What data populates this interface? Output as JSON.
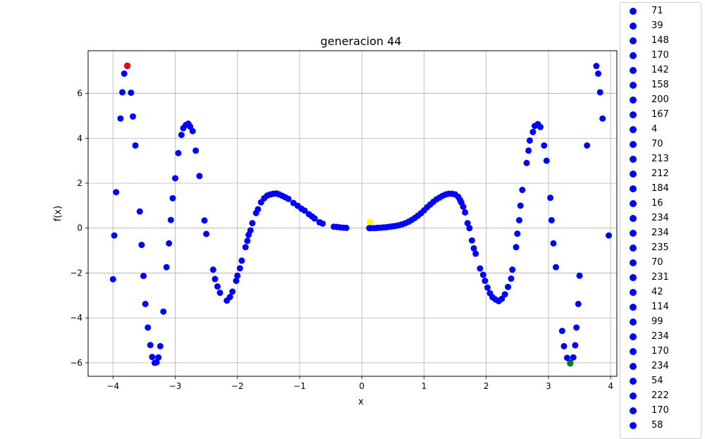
{
  "chart_data": {
    "type": "scatter",
    "title": "generacion 44",
    "xlabel": "x",
    "ylabel": "f(x)",
    "xlim": [
      -4.4,
      4.1
    ],
    "ylim": [
      -6.6,
      7.9
    ],
    "xticks": [
      -4,
      -3,
      -2,
      -1,
      0,
      1,
      2,
      3,
      4
    ],
    "yticks": [
      -6,
      -4,
      -2,
      0,
      2,
      4,
      6
    ],
    "grid": true,
    "legend_position": "right outside",
    "series_color": "#0000ff",
    "points": [
      [
        -4.0,
        -2.28
      ],
      [
        -3.98,
        -0.33
      ],
      [
        -3.95,
        1.6
      ],
      [
        -3.88,
        4.88
      ],
      [
        -3.85,
        6.05
      ],
      [
        -3.82,
        6.88
      ],
      [
        -3.77,
        7.22
      ],
      [
        -3.71,
        6.03
      ],
      [
        -3.68,
        4.97
      ],
      [
        -3.64,
        3.68
      ],
      [
        -3.57,
        0.74
      ],
      [
        -3.54,
        -0.75
      ],
      [
        -3.51,
        -2.13
      ],
      [
        -3.48,
        -3.38
      ],
      [
        -3.44,
        -4.43
      ],
      [
        -3.4,
        -5.21
      ],
      [
        -3.37,
        -5.74
      ],
      [
        -3.33,
        -6.0
      ],
      [
        -3.3,
        -5.98
      ],
      [
        -3.27,
        -5.76
      ],
      [
        -3.24,
        -5.26
      ],
      [
        -3.19,
        -3.72
      ],
      [
        -3.14,
        -1.74
      ],
      [
        -3.1,
        -0.68
      ],
      [
        -3.07,
        0.36
      ],
      [
        -3.04,
        1.33
      ],
      [
        -3.0,
        2.22
      ],
      [
        -2.95,
        3.34
      ],
      [
        -2.9,
        4.15
      ],
      [
        -2.87,
        4.45
      ],
      [
        -2.83,
        4.59
      ],
      [
        -2.79,
        4.65
      ],
      [
        -2.76,
        4.52
      ],
      [
        -2.72,
        4.32
      ],
      [
        -2.67,
        3.45
      ],
      [
        -2.61,
        2.32
      ],
      [
        -2.53,
        0.34
      ],
      [
        -2.5,
        -0.26
      ],
      [
        -2.39,
        -1.85
      ],
      [
        -2.36,
        -2.27
      ],
      [
        -2.32,
        -2.6
      ],
      [
        -2.28,
        -2.88
      ],
      [
        -2.17,
        -3.23
      ],
      [
        -2.12,
        -3.07
      ],
      [
        -2.08,
        -2.83
      ],
      [
        -2.02,
        -2.35
      ],
      [
        -2.0,
        -2.12
      ],
      [
        -1.96,
        -1.79
      ],
      [
        -1.93,
        -1.45
      ],
      [
        -1.87,
        -0.85
      ],
      [
        -1.84,
        -0.57
      ],
      [
        -1.82,
        -0.3
      ],
      [
        -1.79,
        -0.1
      ],
      [
        -1.76,
        0.22
      ],
      [
        -1.7,
        0.67
      ],
      [
        -1.67,
        0.84
      ],
      [
        -1.62,
        1.15
      ],
      [
        -1.57,
        1.33
      ],
      [
        -1.52,
        1.45
      ],
      [
        -1.47,
        1.5
      ],
      [
        -1.42,
        1.53
      ],
      [
        -1.37,
        1.54
      ],
      [
        -1.33,
        1.5
      ],
      [
        -1.28,
        1.44
      ],
      [
        -1.23,
        1.37
      ],
      [
        -1.18,
        1.3
      ],
      [
        -1.1,
        1.12
      ],
      [
        -1.03,
        0.99
      ],
      [
        -0.97,
        0.86
      ],
      [
        -0.92,
        0.78
      ],
      [
        -0.85,
        0.62
      ],
      [
        -0.8,
        0.52
      ],
      [
        -0.76,
        0.43
      ],
      [
        -0.68,
        0.26
      ],
      [
        -0.63,
        0.2
      ],
      [
        -0.45,
        0.06
      ],
      [
        -0.4,
        0.05
      ],
      [
        -0.35,
        0.03
      ],
      [
        -0.3,
        0.02
      ],
      [
        -0.25,
        0.01
      ],
      [
        0.12,
        0.0
      ],
      [
        0.15,
        0.0
      ],
      [
        0.2,
        0.0
      ],
      [
        0.25,
        0.01
      ],
      [
        0.3,
        0.02
      ],
      [
        0.35,
        0.03
      ],
      [
        0.4,
        0.04
      ],
      [
        0.45,
        0.06
      ],
      [
        0.5,
        0.08
      ],
      [
        0.55,
        0.1
      ],
      [
        0.6,
        0.13
      ],
      [
        0.65,
        0.17
      ],
      [
        0.7,
        0.22
      ],
      [
        0.75,
        0.28
      ],
      [
        0.8,
        0.36
      ],
      [
        0.85,
        0.45
      ],
      [
        0.9,
        0.55
      ],
      [
        0.95,
        0.66
      ],
      [
        1.0,
        0.79
      ],
      [
        1.05,
        0.93
      ],
      [
        1.1,
        1.05
      ],
      [
        1.15,
        1.17
      ],
      [
        1.2,
        1.28
      ],
      [
        1.25,
        1.36
      ],
      [
        1.3,
        1.44
      ],
      [
        1.35,
        1.5
      ],
      [
        1.4,
        1.53
      ],
      [
        1.45,
        1.53
      ],
      [
        1.5,
        1.5
      ],
      [
        1.55,
        1.39
      ],
      [
        1.58,
        1.25
      ],
      [
        1.6,
        1.14
      ],
      [
        1.63,
        0.95
      ],
      [
        1.66,
        0.7
      ],
      [
        1.7,
        0.22
      ],
      [
        1.73,
        0.0
      ],
      [
        1.77,
        -0.55
      ],
      [
        1.8,
        -0.9
      ],
      [
        1.83,
        -1.14
      ],
      [
        1.9,
        -1.8
      ],
      [
        1.95,
        -2.08
      ],
      [
        1.98,
        -2.35
      ],
      [
        2.02,
        -2.65
      ],
      [
        2.06,
        -2.9
      ],
      [
        2.1,
        -3.08
      ],
      [
        2.15,
        -3.18
      ],
      [
        2.2,
        -3.25
      ],
      [
        2.25,
        -3.15
      ],
      [
        2.3,
        -2.95
      ],
      [
        2.35,
        -2.62
      ],
      [
        2.4,
        -2.25
      ],
      [
        2.42,
        -1.85
      ],
      [
        2.48,
        -0.85
      ],
      [
        2.5,
        -0.25
      ],
      [
        2.53,
        0.35
      ],
      [
        2.55,
        1.0
      ],
      [
        2.58,
        1.7
      ],
      [
        2.65,
        2.9
      ],
      [
        2.68,
        3.45
      ],
      [
        2.7,
        3.9
      ],
      [
        2.75,
        4.28
      ],
      [
        2.78,
        4.55
      ],
      [
        2.83,
        4.63
      ],
      [
        2.87,
        4.5
      ],
      [
        2.93,
        3.68
      ],
      [
        2.97,
        3.0
      ],
      [
        3.03,
        1.35
      ],
      [
        3.05,
        0.35
      ],
      [
        3.08,
        -0.68
      ],
      [
        3.12,
        -1.74
      ],
      [
        3.22,
        -4.58
      ],
      [
        3.25,
        -5.26
      ],
      [
        3.3,
        -5.78
      ],
      [
        3.35,
        -6.0
      ],
      [
        3.4,
        -5.76
      ],
      [
        3.43,
        -5.22
      ],
      [
        3.45,
        -4.43
      ],
      [
        3.48,
        -3.38
      ],
      [
        3.5,
        -2.12
      ],
      [
        3.62,
        3.68
      ],
      [
        3.77,
        7.22
      ],
      [
        3.8,
        6.88
      ],
      [
        3.83,
        6.05
      ],
      [
        3.87,
        4.88
      ],
      [
        3.97,
        -0.33
      ]
    ],
    "highlights": [
      {
        "x": -3.77,
        "y": 7.24,
        "color": "#ff0000"
      },
      {
        "x": 0.13,
        "y": 0.27,
        "color": "#ffff00"
      },
      {
        "x": 3.35,
        "y": -6.03,
        "color": "#008000"
      }
    ],
    "legend_entries": [
      "71",
      "39",
      "148",
      "170",
      "142",
      "158",
      "200",
      "167",
      "4",
      "70",
      "213",
      "212",
      "184",
      "16",
      "234",
      "234",
      "235",
      "70",
      "231",
      "42",
      "114",
      "99",
      "234",
      "170",
      "234",
      "54",
      "222",
      "170",
      "58"
    ]
  }
}
